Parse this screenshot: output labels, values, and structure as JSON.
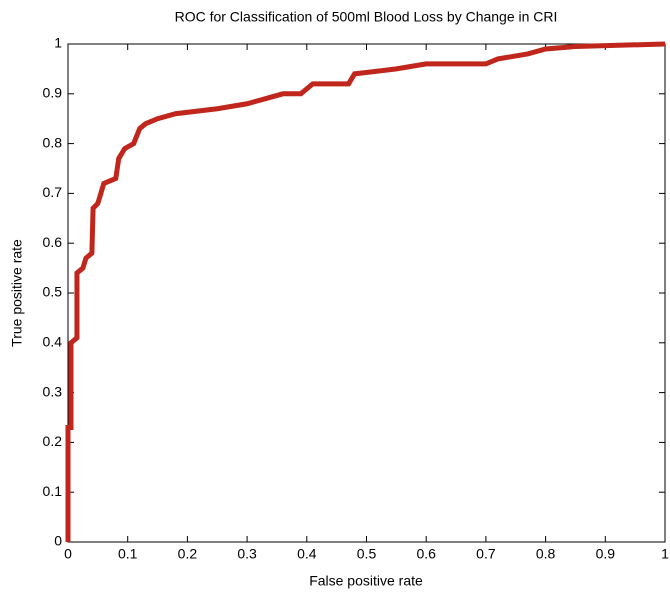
{
  "chart_data": {
    "type": "line",
    "title": "ROC for Classification of 500ml Blood Loss by Change in CRI",
    "x_label": "False positive rate",
    "y_label": "True positive rate",
    "x": [
      0,
      0,
      0.005,
      0.005,
      0.015,
      0.015,
      0.025,
      0.03,
      0.04,
      0.042,
      0.05,
      0.055,
      0.06,
      0.08,
      0.085,
      0.095,
      0.11,
      0.12,
      0.13,
      0.15,
      0.18,
      0.25,
      0.3,
      0.33,
      0.36,
      0.39,
      0.41,
      0.47,
      0.48,
      0.55,
      0.6,
      0.7,
      0.72,
      0.77,
      0.8,
      0.85,
      1
    ],
    "values": [
      0,
      0.23,
      0.23,
      0.4,
      0.41,
      0.54,
      0.55,
      0.57,
      0.58,
      0.67,
      0.68,
      0.7,
      0.72,
      0.73,
      0.77,
      0.79,
      0.8,
      0.83,
      0.84,
      0.85,
      0.86,
      0.87,
      0.88,
      0.89,
      0.9,
      0.9,
      0.92,
      0.92,
      0.94,
      0.95,
      0.96,
      0.96,
      0.97,
      0.98,
      0.99,
      0.995,
      1
    ],
    "color": "#c0261c",
    "xlim": [
      0,
      1
    ],
    "ylim": [
      0,
      1
    ],
    "xticks": [
      0,
      0.1,
      0.2,
      0.3,
      0.4,
      0.5,
      0.6,
      0.7,
      0.8,
      0.9,
      1
    ],
    "yticks": [
      0,
      0.1,
      0.2,
      0.3,
      0.4,
      0.5,
      0.6,
      0.7,
      0.8,
      0.9,
      1
    ],
    "grid": false
  }
}
